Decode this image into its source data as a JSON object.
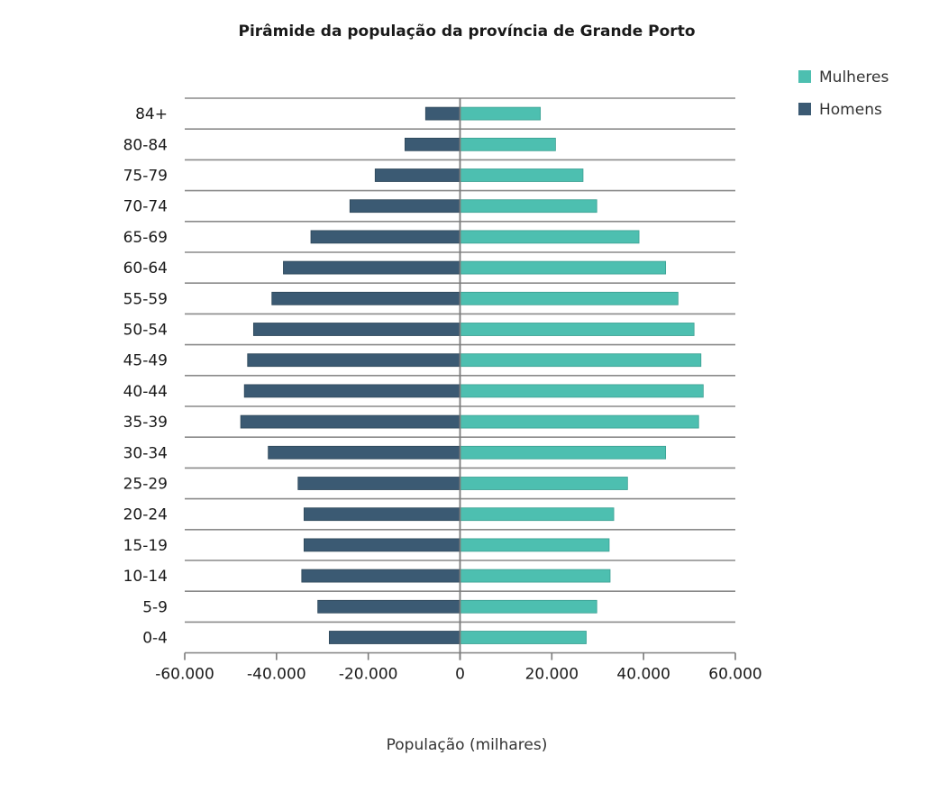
{
  "chart_data": {
    "type": "bar",
    "orientation": "horizontal-diverging",
    "title": "Pirâmide da população da província de Grande Porto",
    "xlabel": "População (milhares)",
    "ylabel": "",
    "xlim": [
      -60000,
      60000
    ],
    "xticks": [
      -60000,
      -40000,
      -20000,
      0,
      20000,
      40000,
      60000
    ],
    "xtick_labels": [
      "-60.000",
      "-40.000",
      "-20.000",
      "0",
      "20.000",
      "40.000",
      "60.000"
    ],
    "categories": [
      "84+",
      "80-84",
      "75-79",
      "70-74",
      "65-69",
      "60-64",
      "55-59",
      "50-54",
      "45-49",
      "40-44",
      "35-39",
      "30-34",
      "25-29",
      "20-24",
      "15-19",
      "10-14",
      "5-9",
      "0-4"
    ],
    "series": [
      {
        "name": "Mulheres",
        "color": "#4dbfb0",
        "values": [
          17500,
          20800,
          26800,
          29800,
          39000,
          44800,
          47500,
          51000,
          52500,
          53000,
          52000,
          44800,
          36500,
          33500,
          32500,
          32700,
          29800,
          27500
        ]
      },
      {
        "name": "Homens",
        "color": "#3b5a73",
        "values": [
          -7500,
          -12000,
          -18500,
          -24000,
          -32500,
          -38500,
          -41000,
          -45000,
          -46300,
          -47000,
          -47800,
          -41800,
          -35300,
          -34000,
          -34000,
          -34500,
          -31000,
          -28500
        ]
      }
    ],
    "legend": {
      "position": "top-right",
      "entries": [
        "Mulheres",
        "Homens"
      ]
    },
    "grid": {
      "horizontal": true,
      "vertical": false
    }
  }
}
